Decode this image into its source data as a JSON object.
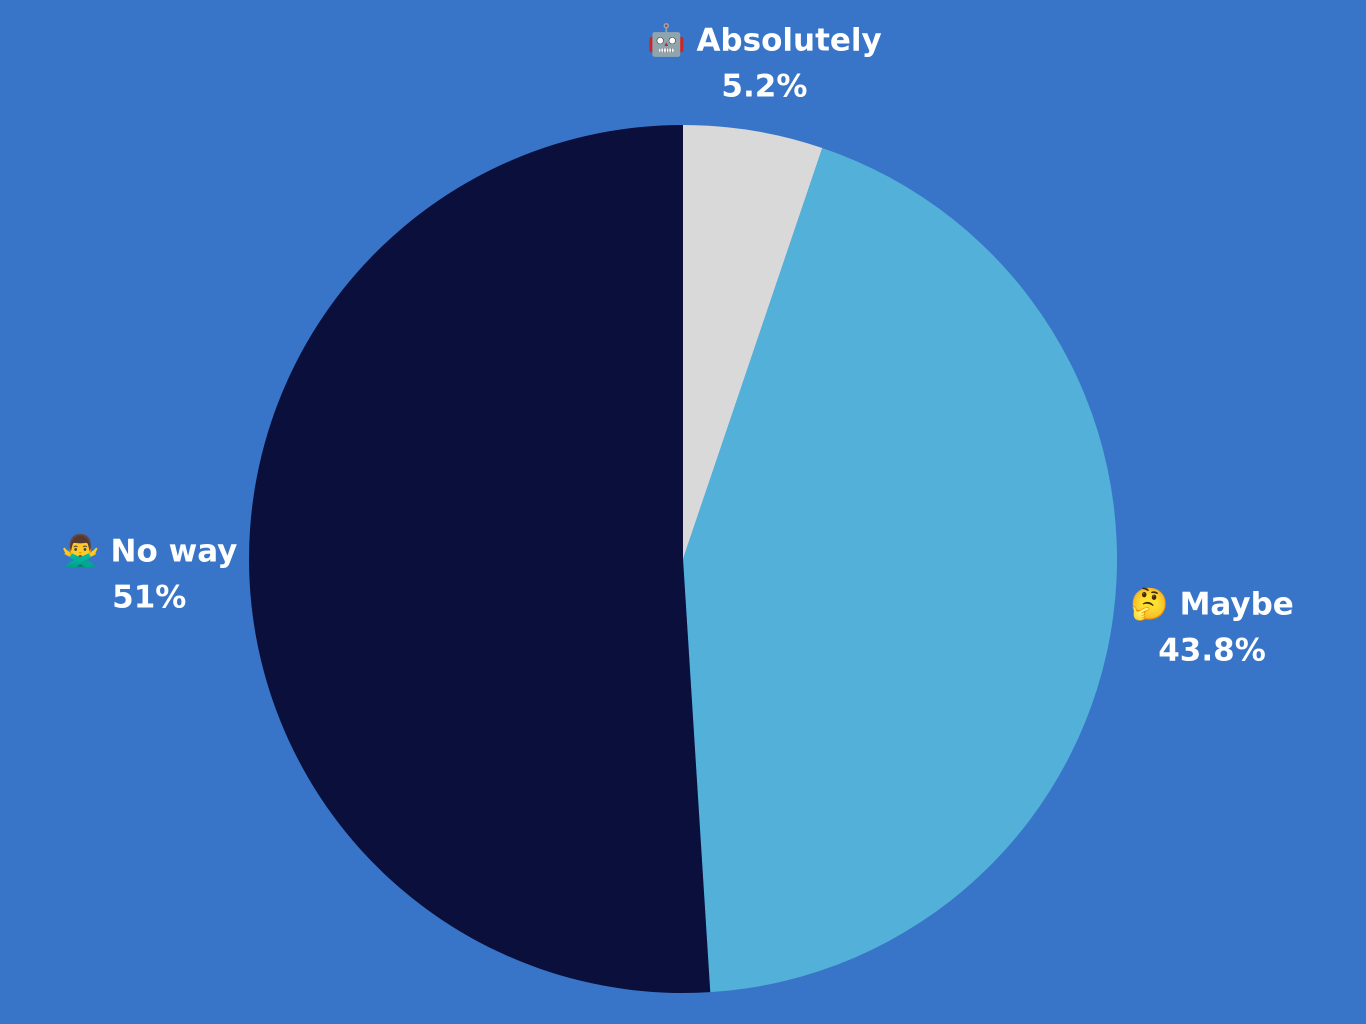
{
  "chart_data": {
    "type": "pie",
    "categories": [
      "🤖 Absolutely",
      "🤔 Maybe",
      "🙅‍♂️ No way"
    ],
    "values": [
      5.2,
      43.8,
      51
    ],
    "value_labels": [
      "5.2%",
      "43.8%",
      "51%"
    ],
    "colors": [
      "#d9d9d9",
      "#52b0d9",
      "#0a0f3c"
    ]
  }
}
